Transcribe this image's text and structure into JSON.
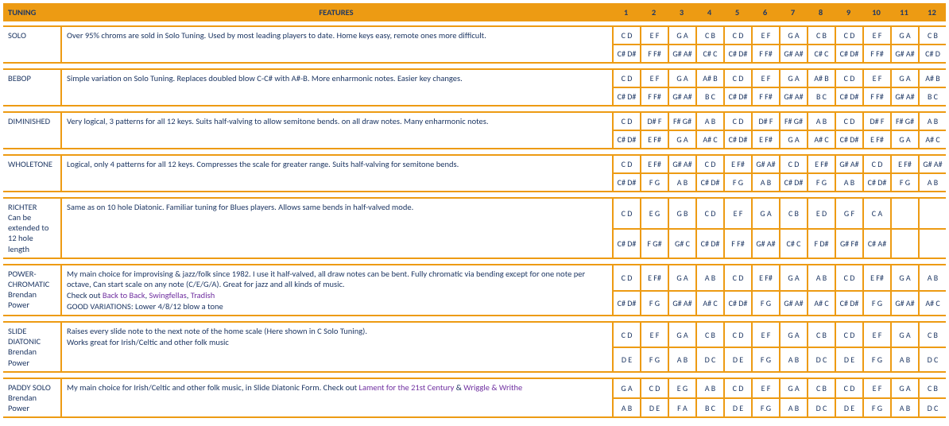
{
  "header": {
    "tuning": "TUNING",
    "features": "FEATURES",
    "nums": [
      "1",
      "2",
      "3",
      "4",
      "5",
      "6",
      "7",
      "8",
      "9",
      "10",
      "11",
      "12"
    ]
  },
  "tunings": [
    {
      "name": "SOLO",
      "sub": "",
      "features": [
        {
          "type": "text",
          "text": "Over 95% chroms are sold in Solo Tuning. Used by most leading players to date. Home keys easy, remote ones more difficult."
        }
      ],
      "rows": [
        [
          "C D",
          "E F",
          "G A",
          "C B",
          "C D",
          "E F",
          "G A",
          "C B",
          "C D",
          "E F",
          "G A",
          "C B"
        ],
        [
          "C# D#",
          "F F#",
          "G# A#",
          "C# C",
          "C# D#",
          "F F#",
          "G# A#",
          "C# C",
          "C# D#",
          "F F#",
          "G# A#",
          "C# D"
        ]
      ]
    },
    {
      "name": "BEBOP",
      "sub": "",
      "features": [
        {
          "type": "text",
          "text": "Simple variation on Solo Tuning. Replaces doubled blow C-C# with A#-B. More enharmonic notes. Easier key changes."
        }
      ],
      "rows": [
        [
          "C D",
          "E F",
          "G A",
          "A# B",
          "C D",
          "E F",
          "G A",
          "A# B",
          "C D",
          "E F",
          "G A",
          "A# B"
        ],
        [
          "C# D#",
          "F F#",
          "G# A#",
          "B C",
          "C# D#",
          "F F#",
          "G# A#",
          "B C",
          "C# D#",
          "F F#",
          "G# A#",
          "B C"
        ]
      ]
    },
    {
      "name": "DIMINISHED",
      "sub": "",
      "features": [
        {
          "type": "text",
          "text": "Very logical, 3 patterns for all 12 keys. Suits half-valving to allow semitone bends. on all draw notes. Many enharmonic notes."
        }
      ],
      "rows": [
        [
          "C D",
          "D# F",
          "F# G#",
          "A B",
          "C D",
          "D# F",
          "F# G#",
          "A B",
          "C D",
          "D# F",
          "F# G#",
          "A B"
        ],
        [
          "C# D#",
          "E F#",
          "G A",
          "A# C",
          "C# D#",
          "E F#",
          "G A",
          "A# C",
          "C# D#",
          "E F#",
          "G A",
          "A# C"
        ]
      ]
    },
    {
      "name": "WHOLETONE",
      "sub": "",
      "features": [
        {
          "type": "text",
          "text": "Logical, only 4 patterns for all 12 keys. Compresses the scale for greater range. Suits half-valving for semitone bends."
        }
      ],
      "rows": [
        [
          "C D",
          "E F#",
          "G# A#",
          "C D",
          "E F#",
          "G# A#",
          "C D",
          "E F#",
          "G# A#",
          "C D",
          "E F#",
          "G# A#"
        ],
        [
          "C# D#",
          "F G",
          "A B",
          "C# D#",
          "F G",
          "A B",
          "C# D#",
          "F G",
          "A B",
          "C# D#",
          "F G",
          "A B"
        ]
      ]
    },
    {
      "name": "RICHTER",
      "sub": "Can be extended to 12 hole length",
      "features": [
        {
          "type": "text",
          "text": "Same as on 10 hole Diatonic. Familiar tuning for Blues players. Allows same bends in half-valved mode."
        }
      ],
      "rows": [
        [
          "C D",
          "E G",
          "G B",
          "C D",
          "E F",
          "G A",
          "C B",
          "E D",
          "G F",
          "C A",
          "",
          ""
        ],
        [
          "C# D#",
          "F G#",
          "G# C",
          "C# D#",
          "F F#",
          "G# A#",
          "C# C",
          "F D#",
          "G# F#",
          "C# A#",
          "",
          ""
        ]
      ]
    },
    {
      "name": "POWER-CHROMATIC",
      "sub": "Brendan Power",
      "features": [
        {
          "type": "text",
          "text": "My main choice for improvising & jazz/folk since 1982. I use it half-valved, all draw notes can be bent. Fully chromatic via bending except for one note per octave, Can start scale on any note (C/E/G/A). Great for jazz and all kinds of music."
        },
        {
          "type": "mixed",
          "parts": [
            {
              "t": "Check out "
            },
            {
              "t": "Back to Back",
              "link": true
            },
            {
              "t": ", "
            },
            {
              "t": "Swingfellas",
              "link": true
            },
            {
              "t": ", "
            },
            {
              "t": "Tradish",
              "link": true
            }
          ]
        },
        {
          "type": "text",
          "text": "GOOD VARIATIONS: Lower 4/8/12 blow a tone"
        }
      ],
      "rows": [
        [
          "C D",
          "E F#",
          "G A",
          "A B",
          "C D",
          "E F#",
          "G A",
          "A B",
          "C D",
          "E F#",
          "G A",
          "A B"
        ],
        [
          "C# D#",
          "F G",
          "G# A#",
          "A# C",
          "C# D#",
          "F G",
          "G# A#",
          "A# C",
          "C# D#",
          "F G",
          "G# A#",
          "A# C"
        ]
      ]
    },
    {
      "name": "SLIDE DIATONIC",
      "sub": "Brendan Power",
      "features": [
        {
          "type": "text",
          "text": "Raises every slide note to the next note of the home scale (Here shown in C Solo Tuning)."
        },
        {
          "type": "text",
          "text": "Works great for Irish/Celtic and other folk music"
        }
      ],
      "rows": [
        [
          "C D",
          "E F",
          "G A",
          "C B",
          "C D",
          "E F",
          "G A",
          "C B",
          "C D",
          "E F",
          "G A",
          "C B"
        ],
        [
          "D E",
          "F G",
          "A B",
          "D C",
          "D E",
          "F G",
          "A B",
          "D C",
          "D E",
          "F G",
          "A B",
          "D C"
        ]
      ]
    },
    {
      "name": "PADDY SOLO",
      "sub": "Brendan Power",
      "features": [
        {
          "type": "mixed",
          "parts": [
            {
              "t": "My main choice for Irish/Celtic and other folk music, in Slide Diatonic Form. Check out "
            },
            {
              "t": "Lament for the 21st Century",
              "link": true
            },
            {
              "t": " & "
            },
            {
              "t": "Wriggle & Writhe",
              "link": true
            }
          ]
        }
      ],
      "rows": [
        [
          "G A",
          "C D",
          "E G",
          "A B",
          "C D",
          "E F",
          "G A",
          "C B",
          "C D",
          "E F",
          "G A",
          "C B"
        ],
        [
          "A B",
          "D E",
          "F A",
          "B C",
          "D E",
          "F G",
          "A B",
          "D C",
          "D E",
          "F G",
          "A B",
          "D C"
        ]
      ]
    }
  ],
  "colors": {
    "accent": "#ed9b13",
    "text": "#1f3864",
    "link": "#7030a0",
    "background": "#ffffff"
  }
}
